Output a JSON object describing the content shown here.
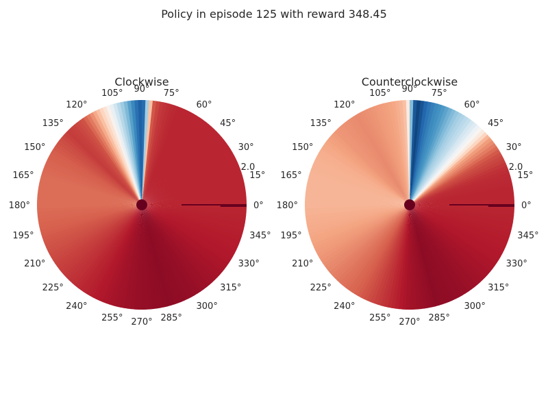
{
  "figure": {
    "title": "Policy in episode 125 with reward 348.45"
  },
  "colors": {
    "colormap": "RdBu",
    "low": "#67001f",
    "mid": "#f7f7f7",
    "high": "#053061",
    "center_dot": "#67001f"
  },
  "chart_data": [
    {
      "type": "heatmap",
      "projection": "polar",
      "title": "Clockwise",
      "theta_ticks": [
        "0°",
        "15°",
        "30°",
        "45°",
        "60°",
        "75°",
        "90°",
        "105°",
        "120°",
        "135°",
        "150°",
        "165°",
        "180°",
        "195°",
        "210°",
        "225°",
        "240°",
        "255°",
        "270°",
        "285°",
        "300°",
        "315°",
        "330°",
        "345°"
      ],
      "r_ticks": [
        "2.0"
      ],
      "r_tick_value": 2.0,
      "r_max": 2.1,
      "theta_deg": [
        0,
        15,
        30,
        45,
        60,
        70,
        75,
        80,
        84,
        86,
        88,
        90,
        92,
        96,
        100,
        105,
        110,
        115,
        120,
        125,
        130,
        135,
        140,
        150,
        165,
        180,
        195,
        210,
        225,
        240,
        255,
        270,
        285,
        300,
        315,
        330,
        345,
        360
      ],
      "value": [
        0.12,
        0.12,
        0.12,
        0.12,
        0.12,
        0.12,
        0.13,
        0.15,
        0.2,
        0.5,
        0.85,
        0.92,
        0.9,
        0.8,
        0.7,
        0.6,
        0.45,
        0.35,
        0.25,
        0.18,
        0.16,
        0.15,
        0.17,
        0.2,
        0.22,
        0.22,
        0.2,
        0.17,
        0.14,
        0.11,
        0.08,
        0.06,
        0.05,
        0.06,
        0.08,
        0.1,
        0.11,
        0.12
      ]
    },
    {
      "type": "heatmap",
      "projection": "polar",
      "title": "Counterclockwise",
      "theta_ticks": [
        "0°",
        "15°",
        "30°",
        "45°",
        "60°",
        "75°",
        "90°",
        "105°",
        "120°",
        "135°",
        "150°",
        "165°",
        "180°",
        "195°",
        "210°",
        "225°",
        "240°",
        "255°",
        "270°",
        "285°",
        "300°",
        "315°",
        "330°",
        "345°"
      ],
      "r_ticks": [
        "2.0"
      ],
      "r_tick_value": 2.0,
      "r_max": 2.1,
      "theta_deg": [
        0,
        10,
        20,
        30,
        40,
        45,
        50,
        55,
        60,
        65,
        70,
        75,
        80,
        84,
        86,
        88,
        90,
        92,
        95,
        100,
        110,
        120,
        135,
        150,
        165,
        180,
        195,
        210,
        225,
        240,
        255,
        270,
        285,
        300,
        315,
        330,
        345,
        360
      ],
      "value": [
        0.12,
        0.12,
        0.13,
        0.18,
        0.3,
        0.45,
        0.55,
        0.62,
        0.66,
        0.72,
        0.78,
        0.82,
        0.88,
        0.95,
        0.97,
        0.88,
        0.55,
        0.36,
        0.33,
        0.3,
        0.28,
        0.26,
        0.28,
        0.32,
        0.33,
        0.33,
        0.31,
        0.28,
        0.24,
        0.2,
        0.14,
        0.08,
        0.05,
        0.06,
        0.08,
        0.1,
        0.11,
        0.12
      ]
    }
  ]
}
